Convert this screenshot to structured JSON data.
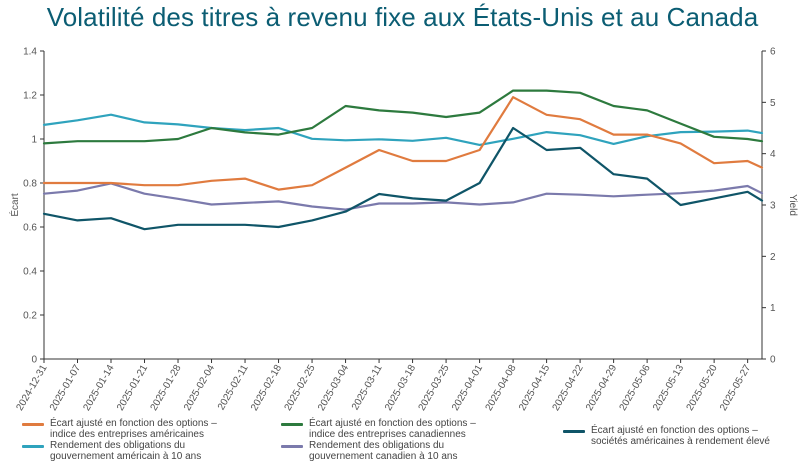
{
  "title": "Volatilité des titres à revenu fixe aux États-Unis et au Canada",
  "chart_data": {
    "type": "line",
    "ylabel_left": "Écart",
    "ylabel_right": "Yield",
    "ylim_left": [
      0,
      1.4
    ],
    "ylim_right": [
      0,
      6
    ],
    "yticks_left": [
      "0",
      "0.2",
      "0.4",
      "0.6",
      "0.8",
      "1",
      "1.2",
      "1.4"
    ],
    "yticks_right": [
      "0",
      "1",
      "2",
      "3",
      "4",
      "5",
      "6"
    ],
    "x": [
      "2024-12-31",
      "2025-01-07",
      "2025-01-14",
      "2025-01-21",
      "2025-01-28",
      "2025-02-04",
      "2025-02-11",
      "2025-02-18",
      "2025-02-25",
      "2025-03-04",
      "2025-03-11",
      "2025-03-18",
      "2025-03-25",
      "2025-04-01",
      "2025-04-08",
      "2025-04-15",
      "2025-04-22",
      "2025-04-29",
      "2025-05-06",
      "2025-05-13",
      "2025-05-20",
      "2025-05-27",
      "2025-05-30"
    ],
    "xticks": [
      "2024-12-31",
      "2025-01-07",
      "2025-01-14",
      "2025-01-21",
      "2025-01-28",
      "2025-02-04",
      "2025-02-11",
      "2025-02-18",
      "2025-02-25",
      "2025-03-04",
      "2025-03-11",
      "2025-03-18",
      "2025-03-25",
      "2025-04-01",
      "2025-04-08",
      "2025-04-15",
      "2025-04-22",
      "2025-04-29",
      "2025-05-06",
      "2025-05-13",
      "2025-05-20",
      "2025-05-27"
    ],
    "series": [
      {
        "name": "Écart ajusté en fonction des options – indice des entreprises américaines",
        "axis": "left",
        "color": "#e07b3f",
        "values": [
          0.8,
          0.8,
          0.8,
          0.79,
          0.79,
          0.81,
          0.82,
          0.77,
          0.79,
          0.87,
          0.95,
          0.9,
          0.9,
          0.95,
          1.19,
          1.11,
          1.09,
          1.02,
          1.02,
          0.98,
          0.89,
          0.9,
          0.87
        ]
      },
      {
        "name": "Écart ajusté en fonction des options – indice des entreprises canadiennes",
        "axis": "left",
        "color": "#2d7a3e",
        "values": [
          0.98,
          0.99,
          0.99,
          0.99,
          1.0,
          1.05,
          1.03,
          1.02,
          1.05,
          1.15,
          1.13,
          1.12,
          1.1,
          1.12,
          1.22,
          1.22,
          1.21,
          1.15,
          1.13,
          1.07,
          1.01,
          1.0,
          0.99
        ]
      },
      {
        "name": "Écart ajusté en fonction des options – sociétés américaines à rendement élevé",
        "axis": "left",
        "color": "#0f5568",
        "values": [
          0.66,
          0.63,
          0.64,
          0.59,
          0.61,
          0.61,
          0.61,
          0.6,
          0.63,
          0.67,
          0.75,
          0.73,
          0.72,
          0.8,
          1.05,
          0.95,
          0.96,
          0.84,
          0.82,
          0.7,
          0.73,
          0.76,
          0.72
        ]
      },
      {
        "name": "Rendement des obligations du gouvernement américain à 10 ans",
        "axis": "right",
        "color": "#2fa3bd",
        "values": [
          4.56,
          4.65,
          4.76,
          4.61,
          4.57,
          4.5,
          4.46,
          4.5,
          4.29,
          4.26,
          4.28,
          4.25,
          4.31,
          4.17,
          4.29,
          4.42,
          4.36,
          4.19,
          4.34,
          4.42,
          4.43,
          4.45,
          4.4
        ]
      },
      {
        "name": "Rendement des obligations du gouvernement canadien à 10 ans",
        "axis": "right",
        "color": "#7b7aac",
        "values": [
          3.22,
          3.28,
          3.42,
          3.22,
          3.12,
          3.01,
          3.04,
          3.07,
          2.97,
          2.91,
          3.03,
          3.03,
          3.05,
          3.01,
          3.05,
          3.22,
          3.2,
          3.17,
          3.2,
          3.23,
          3.28,
          3.37,
          3.23
        ]
      }
    ],
    "legend": [
      {
        "lines": [
          "Écart ajusté en fonction des options –",
          "indice des entreprises américaines"
        ],
        "color": "#e07b3f"
      },
      {
        "lines": [
          "Écart ajusté en fonction des options –",
          "indice des entreprises canadiennes"
        ],
        "color": "#2d7a3e"
      },
      {
        "lines": [
          "Écart ajusté en fonction des options –",
          "sociétés américaines à rendement élevé"
        ],
        "color": "#0f5568"
      },
      {
        "lines": [
          "Rendement des obligations du",
          "gouvernement américain à 10 ans"
        ],
        "color": "#2fa3bd"
      },
      {
        "lines": [
          "Rendement des obligations du",
          "gouvernement canadien à 10 ans"
        ],
        "color": "#7b7aac"
      }
    ],
    "grid": false,
    "legend_position": "bottom"
  }
}
